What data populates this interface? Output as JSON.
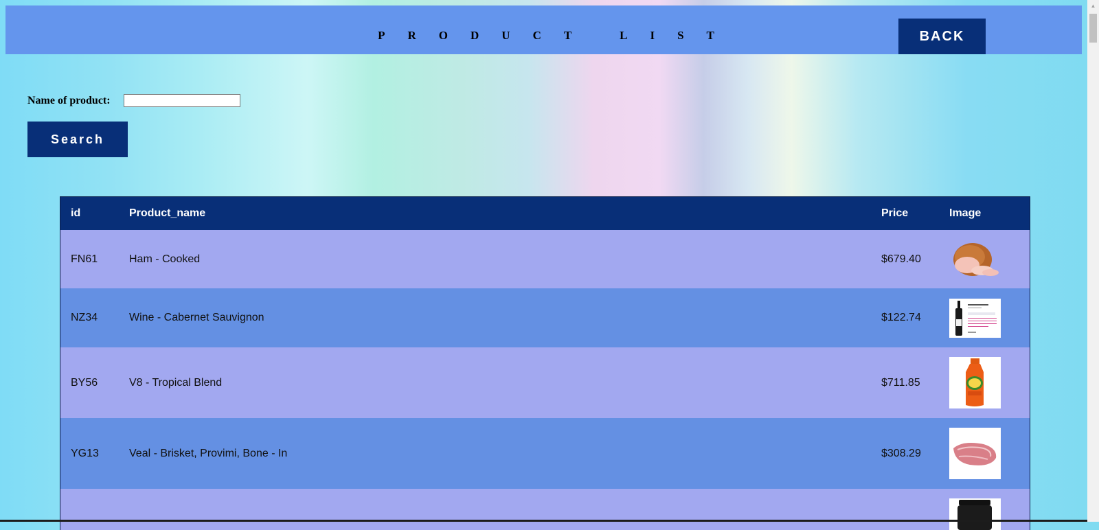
{
  "header": {
    "title": "PRODUCT LIST",
    "back_label": "BACK"
  },
  "search": {
    "label": "Name of product:",
    "value": "",
    "button_label": "Search"
  },
  "table": {
    "columns": [
      "id",
      "Product_name",
      "Price",
      "Image"
    ],
    "rows": [
      {
        "id": "FN61",
        "name": "Ham - Cooked",
        "price": "$679.40",
        "image": "ham-image"
      },
      {
        "id": "NZ34",
        "name": "Wine - Cabernet Sauvignon",
        "price": "$122.74",
        "image": "wine-image"
      },
      {
        "id": "BY56",
        "name": "V8 - Tropical Blend",
        "price": "$711.85",
        "image": "juice-bottle-image"
      },
      {
        "id": "YG13",
        "name": "Veal - Brisket, Provimi, Bone - In",
        "price": "$308.29",
        "image": "veal-image"
      },
      {
        "id": "",
        "name": "",
        "price": "",
        "image": "jar-image"
      }
    ]
  },
  "colors": {
    "header_bar": "#6495ed",
    "button_bg": "#082f78",
    "row_odd": "#a2a8f0",
    "row_even": "#6490e3"
  }
}
